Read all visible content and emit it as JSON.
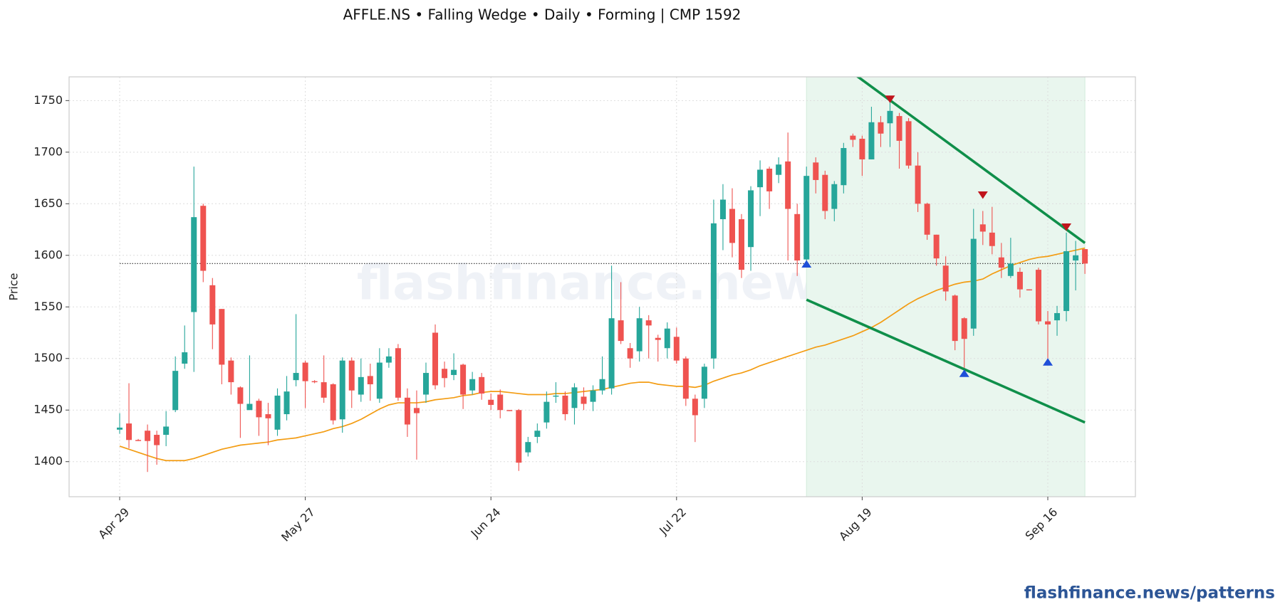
{
  "chart_data": {
    "type": "candlestick",
    "title": "AFFLE.NS  •  Falling Wedge  •  Daily  •  Forming  |  CMP 1592",
    "y_label": "Price",
    "watermark": "flashfinance.news",
    "footer": "flashfinance.news/patterns",
    "categories": [
      "Apr 29",
      null,
      null,
      null,
      null,
      null,
      null,
      null,
      null,
      null,
      null,
      null,
      null,
      null,
      null,
      null,
      null,
      null,
      null,
      null,
      "May 27",
      null,
      null,
      null,
      null,
      null,
      null,
      null,
      null,
      null,
      null,
      null,
      null,
      null,
      null,
      null,
      null,
      null,
      null,
      null,
      "Jun 24",
      null,
      null,
      null,
      null,
      null,
      null,
      null,
      null,
      null,
      null,
      null,
      null,
      null,
      null,
      null,
      null,
      null,
      null,
      null,
      "Jul 22",
      null,
      null,
      null,
      null,
      null,
      null,
      null,
      null,
      null,
      null,
      null,
      null,
      null,
      null,
      null,
      null,
      null,
      null,
      null,
      "Aug 19",
      null,
      null,
      null,
      null,
      null,
      null,
      null,
      null,
      null,
      null,
      null,
      null,
      null,
      null,
      null,
      null,
      null,
      null,
      null,
      "Sep 16",
      null,
      null,
      null,
      null
    ],
    "open": [
      1431,
      1437,
      1421,
      1430,
      1426,
      1426,
      1450,
      1495,
      1545,
      1648,
      1571,
      1548,
      1498,
      1472,
      1450,
      1459,
      1446,
      1431,
      1446,
      1479,
      1496,
      1478,
      1477,
      1475,
      1441,
      1498,
      1465,
      1483,
      1461,
      1496,
      1510,
      1462,
      1452,
      1465,
      1525,
      1490,
      1484,
      1494,
      1469,
      1482,
      1460,
      1465,
      1450,
      1450,
      1409,
      1424,
      1438,
      1463,
      1464,
      1452,
      1463,
      1458,
      1469,
      1471,
      1537,
      1510,
      1507,
      1537,
      1520,
      1510,
      1521,
      1500,
      1461,
      1461,
      1500,
      1635,
      1645,
      1635,
      1608,
      1666,
      1684,
      1678,
      1691,
      1640,
      1596,
      1690,
      1678,
      1645,
      1668,
      1716,
      1713,
      1693,
      1729,
      1728,
      1735,
      1730,
      1687,
      1650,
      1620,
      1590,
      1561,
      1539,
      1529,
      1630,
      1622,
      1598,
      1580,
      1584,
      1567,
      1586,
      1536,
      1537,
      1546,
      1595,
      1606
    ],
    "high": [
      1447,
      1476,
      1422,
      1436,
      1430,
      1449,
      1502,
      1532,
      1686,
      1650,
      1578,
      1548,
      1501,
      1473,
      1503,
      1461,
      1457,
      1471,
      1483,
      1543,
      1498,
      1479,
      1503,
      1476,
      1501,
      1501,
      1500,
      1495,
      1510,
      1510,
      1514,
      1471,
      1469,
      1496,
      1533,
      1497,
      1505,
      1495,
      1487,
      1486,
      1466,
      1470,
      1450,
      1451,
      1424,
      1437,
      1468,
      1477,
      1468,
      1476,
      1472,
      1474,
      1502,
      1590,
      1574,
      1515,
      1550,
      1542,
      1523,
      1535,
      1530,
      1502,
      1465,
      1495,
      1654,
      1669,
      1665,
      1640,
      1667,
      1692,
      1686,
      1695,
      1719,
      1650,
      1686,
      1695,
      1682,
      1672,
      1709,
      1718,
      1716,
      1744,
      1735,
      1752,
      1738,
      1733,
      1700,
      1651,
      1620,
      1599,
      1562,
      1540,
      1645,
      1643,
      1647,
      1612,
      1617,
      1588,
      1567,
      1588,
      1546,
      1551,
      1622,
      1614,
      1606
    ],
    "low": [
      1427,
      1413,
      1420,
      1390,
      1397,
      1415,
      1448,
      1490,
      1487,
      1574,
      1509,
      1475,
      1465,
      1423,
      1450,
      1425,
      1416,
      1425,
      1440,
      1473,
      1452,
      1476,
      1457,
      1436,
      1428,
      1452,
      1458,
      1459,
      1457,
      1491,
      1459,
      1424,
      1402,
      1457,
      1470,
      1472,
      1479,
      1451,
      1465,
      1460,
      1450,
      1442,
      1449,
      1391,
      1405,
      1418,
      1432,
      1457,
      1440,
      1436,
      1450,
      1449,
      1465,
      1465,
      1514,
      1491,
      1497,
      1500,
      1497,
      1500,
      1495,
      1454,
      1419,
      1452,
      1490,
      1605,
      1598,
      1578,
      1585,
      1638,
      1645,
      1670,
      1595,
      1580,
      1590,
      1660,
      1635,
      1633,
      1660,
      1705,
      1677,
      1693,
      1705,
      1705,
      1684,
      1684,
      1642,
      1615,
      1590,
      1556,
      1508,
      1488,
      1522,
      1610,
      1601,
      1578,
      1578,
      1559,
      1566,
      1533,
      1500,
      1522,
      1536,
      1566,
      1582
    ],
    "close": [
      1433,
      1421,
      1420,
      1420,
      1416,
      1434,
      1488,
      1506,
      1637,
      1585,
      1533,
      1494,
      1477,
      1456,
      1456,
      1443,
      1442,
      1464,
      1468,
      1486,
      1478,
      1477,
      1462,
      1440,
      1498,
      1469,
      1482,
      1475,
      1496,
      1502,
      1462,
      1436,
      1447,
      1486,
      1474,
      1481,
      1489,
      1465,
      1480,
      1466,
      1455,
      1450,
      1449,
      1399,
      1419,
      1430,
      1458,
      1464,
      1446,
      1472,
      1456,
      1469,
      1480,
      1539,
      1517,
      1500,
      1539,
      1532,
      1518,
      1529,
      1498,
      1461,
      1445,
      1492,
      1631,
      1654,
      1612,
      1586,
      1663,
      1683,
      1662,
      1688,
      1645,
      1595,
      1677,
      1673,
      1643,
      1669,
      1704,
      1712,
      1693,
      1729,
      1718,
      1740,
      1711,
      1687,
      1650,
      1620,
      1597,
      1565,
      1517,
      1519,
      1616,
      1623,
      1609,
      1588,
      1592,
      1567,
      1566,
      1536,
      1533,
      1544,
      1604,
      1600,
      1592
    ],
    "up_color": "#26a69a",
    "down_color": "#ef5350",
    "ma": {
      "color": "#f39c12",
      "values": [
        1415,
        1412,
        1409,
        1406,
        1403,
        1401,
        1401,
        1401,
        1403,
        1406,
        1409,
        1412,
        1414,
        1416,
        1417,
        1418,
        1419,
        1421,
        1422,
        1423,
        1425,
        1427,
        1429,
        1432,
        1434,
        1437,
        1441,
        1446,
        1451,
        1455,
        1457,
        1457,
        1457,
        1458,
        1460,
        1461,
        1462,
        1464,
        1465,
        1467,
        1468,
        1468,
        1467,
        1466,
        1465,
        1465,
        1465,
        1466,
        1466,
        1467,
        1468,
        1469,
        1470,
        1472,
        1474,
        1476,
        1477,
        1477,
        1475,
        1474,
        1473,
        1473,
        1472,
        1474,
        1478,
        1481,
        1484,
        1486,
        1489,
        1493,
        1496,
        1499,
        1502,
        1505,
        1508,
        1511,
        1513,
        1516,
        1519,
        1522,
        1526,
        1530,
        1535,
        1541,
        1547,
        1553,
        1558,
        1562,
        1566,
        1569,
        1572,
        1574,
        1575,
        1577,
        1582,
        1586,
        1590,
        1593,
        1596,
        1598,
        1599,
        1601,
        1603,
        1605,
        1607
      ]
    },
    "trendlines": [
      {
        "color": "#0f8f4a",
        "x": [
          79.4,
          104
        ],
        "y": [
          1774,
          1612
        ]
      },
      {
        "color": "#0f8f4a",
        "x": [
          74,
          104
        ],
        "y": [
          1557,
          1438
        ]
      }
    ],
    "pattern_range": [
      74,
      104
    ],
    "pattern_color": "#e9f6ee",
    "cmp_line": 1592,
    "troughs": {
      "color": "#1f4fd8",
      "x": [
        74,
        91,
        100
      ],
      "y": [
        1591,
        1485,
        1496
      ]
    },
    "peaks": {
      "color": "#c0141c",
      "x": [
        83,
        93,
        102
      ],
      "y": [
        1752,
        1659,
        1628
      ]
    },
    "ylim": [
      1366,
      1773
    ],
    "yticks": [
      1400,
      1450,
      1500,
      1550,
      1600,
      1650,
      1700,
      1750
    ],
    "grid": true
  }
}
